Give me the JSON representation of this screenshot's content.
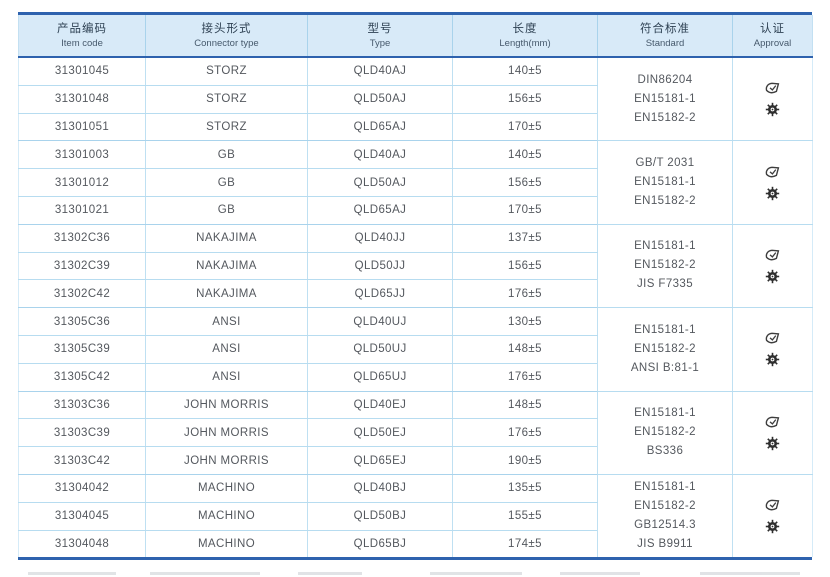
{
  "table": {
    "header_bg": "#d8eaf8",
    "accent_border_color": "#2e62ae",
    "grid_line_color": "#aed6ee",
    "columns": [
      {
        "zh": "产品编码",
        "en": "Item code"
      },
      {
        "zh": "接头形式",
        "en": "Connector type"
      },
      {
        "zh": "型号",
        "en": "Type"
      },
      {
        "zh": "长度",
        "en": "Length(mm)"
      },
      {
        "zh": "符合标准",
        "en": "Standard"
      },
      {
        "zh": "认证",
        "en": "Approval"
      }
    ],
    "groups": [
      {
        "rows": [
          {
            "code": "31301045",
            "connector": "STORZ",
            "type": "QLD40AJ",
            "length": "140±5"
          },
          {
            "code": "31301048",
            "connector": "STORZ",
            "type": "QLD50AJ",
            "length": "156±5"
          },
          {
            "code": "31301051",
            "connector": "STORZ",
            "type": "QLD65AJ",
            "length": "170±5"
          }
        ],
        "standards": [
          "DIN86204",
          "EN15181-1",
          "EN15182-2"
        ],
        "approval_icons": [
          "cert-flag-icon",
          "wheel-seal-icon"
        ]
      },
      {
        "rows": [
          {
            "code": "31301003",
            "connector": "GB",
            "type": "QLD40AJ",
            "length": "140±5"
          },
          {
            "code": "31301012",
            "connector": "GB",
            "type": "QLD50AJ",
            "length": "156±5"
          },
          {
            "code": "31301021",
            "connector": "GB",
            "type": "QLD65AJ",
            "length": "170±5"
          }
        ],
        "standards": [
          "GB/T 2031",
          "EN15181-1",
          "EN15182-2"
        ],
        "approval_icons": [
          "cert-flag-icon",
          "wheel-seal-icon"
        ]
      },
      {
        "rows": [
          {
            "code": "31302C36",
            "connector": "NAKAJIMA",
            "type": "QLD40JJ",
            "length": "137±5"
          },
          {
            "code": "31302C39",
            "connector": "NAKAJIMA",
            "type": "QLD50JJ",
            "length": "156±5"
          },
          {
            "code": "31302C42",
            "connector": "NAKAJIMA",
            "type": "QLD65JJ",
            "length": "176±5"
          }
        ],
        "standards": [
          "EN15181-1",
          "EN15182-2",
          "JIS F7335"
        ],
        "approval_icons": [
          "cert-flag-icon",
          "wheel-seal-icon"
        ]
      },
      {
        "rows": [
          {
            "code": "31305C36",
            "connector": "ANSI",
            "type": "QLD40UJ",
            "length": "130±5"
          },
          {
            "code": "31305C39",
            "connector": "ANSI",
            "type": "QLD50UJ",
            "length": "148±5"
          },
          {
            "code": "31305C42",
            "connector": "ANSI",
            "type": "QLD65UJ",
            "length": "176±5"
          }
        ],
        "standards": [
          "EN15181-1",
          "EN15182-2",
          "ANSI B:81-1"
        ],
        "approval_icons": [
          "cert-flag-icon",
          "wheel-seal-icon"
        ]
      },
      {
        "rows": [
          {
            "code": "31303C36",
            "connector": "JOHN MORRIS",
            "type": "QLD40EJ",
            "length": "148±5"
          },
          {
            "code": "31303C39",
            "connector": "JOHN MORRIS",
            "type": "QLD50EJ",
            "length": "176±5"
          },
          {
            "code": "31303C42",
            "connector": "JOHN MORRIS",
            "type": "QLD65EJ",
            "length": "190±5"
          }
        ],
        "standards": [
          "EN15181-1",
          "EN15182-2",
          "BS336"
        ],
        "approval_icons": [
          "cert-flag-icon",
          "wheel-seal-icon"
        ]
      },
      {
        "rows": [
          {
            "code": "31304042",
            "connector": "MACHINO",
            "type": "QLD40BJ",
            "length": "135±5"
          },
          {
            "code": "31304045",
            "connector": "MACHINO",
            "type": "QLD50BJ",
            "length": "155±5"
          },
          {
            "code": "31304048",
            "connector": "MACHINO",
            "type": "QLD65BJ",
            "length": "174±5"
          }
        ],
        "standards": [
          "EN15181-1",
          "EN15182-2",
          "GB12514.3",
          "JIS B9911"
        ],
        "approval_icons": [
          "cert-flag-icon",
          "wheel-seal-icon"
        ]
      }
    ]
  }
}
